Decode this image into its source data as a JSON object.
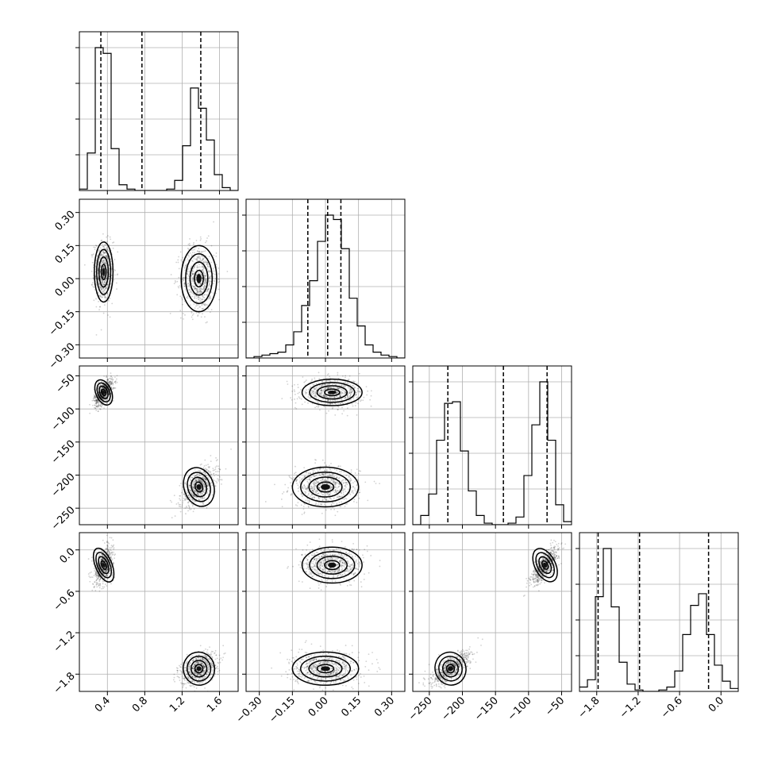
{
  "chart_data": {
    "type": "corner",
    "grid": true,
    "parameters": [
      {
        "index": 0,
        "range": [
          0.1,
          1.8
        ],
        "ticks": [
          {
            "v": 0.4,
            "label": "0.4"
          },
          {
            "v": 0.8,
            "label": "0.8"
          },
          {
            "v": 1.2,
            "label": "1.2"
          },
          {
            "v": 1.6,
            "label": "1.6"
          }
        ],
        "quantiles": [
          0.33,
          0.77,
          1.4
        ]
      },
      {
        "index": 1,
        "range": [
          -0.36,
          0.36
        ],
        "ticks": [
          {
            "v": -0.3,
            "label": "−0.30"
          },
          {
            "v": -0.15,
            "label": "−0.15"
          },
          {
            "v": 0.0,
            "label": "0.00"
          },
          {
            "v": 0.15,
            "label": "0.15"
          },
          {
            "v": 0.3,
            "label": "0.30"
          }
        ],
        "quantiles": [
          -0.08,
          0.01,
          0.07
        ]
      },
      {
        "index": 2,
        "range": [
          -275,
          -35
        ],
        "ticks": [
          {
            "v": -250,
            "label": "−250"
          },
          {
            "v": -200,
            "label": "−200"
          },
          {
            "v": -150,
            "label": "−150"
          },
          {
            "v": -100,
            "label": "−100"
          },
          {
            "v": -50,
            "label": "−50"
          }
        ],
        "quantiles": [
          -222,
          -138,
          -72
        ]
      },
      {
        "index": 3,
        "range": [
          -2.05,
          0.25
        ],
        "ticks": [
          {
            "v": -1.8,
            "label": "−1.8"
          },
          {
            "v": -1.2,
            "label": "−1.2"
          },
          {
            "v": -0.6,
            "label": "−0.6"
          },
          {
            "v": 0.0,
            "label": "0.0"
          }
        ],
        "quantiles": [
          -1.78,
          -1.18,
          -0.18
        ]
      }
    ],
    "histograms": [
      {
        "param": 0,
        "edges": [
          0.1,
          0.185,
          0.27,
          0.355,
          0.44,
          0.525,
          0.61,
          0.695,
          0.78,
          0.865,
          0.95,
          1.035,
          1.12,
          1.205,
          1.29,
          1.375,
          1.46,
          1.545,
          1.63,
          1.715,
          1.8
        ],
        "counts": [
          0.01,
          0.26,
          0.99,
          0.95,
          0.29,
          0.04,
          0.01,
          0,
          0,
          0,
          0,
          0.01,
          0.07,
          0.31,
          0.71,
          0.57,
          0.35,
          0.11,
          0.02,
          0
        ]
      },
      {
        "param": 1,
        "edges": [
          -0.36,
          -0.324,
          -0.288,
          -0.252,
          -0.216,
          -0.18,
          -0.144,
          -0.108,
          -0.072,
          -0.036,
          0.0,
          0.036,
          0.072,
          0.108,
          0.144,
          0.18,
          0.216,
          0.252,
          0.288,
          0.324,
          0.36
        ],
        "counts": [
          0,
          0.01,
          0.02,
          0.03,
          0.04,
          0.09,
          0.18,
          0.36,
          0.53,
          0.8,
          0.98,
          0.95,
          0.75,
          0.41,
          0.22,
          0.09,
          0.04,
          0.02,
          0.01,
          0
        ]
      },
      {
        "param": 2,
        "edges": [
          -275,
          -263,
          -251,
          -239,
          -227,
          -215,
          -203,
          -191,
          -179,
          -167,
          -155,
          -143,
          -131,
          -119,
          -107,
          -95,
          -83,
          -71,
          -59,
          -47,
          -35
        ],
        "counts": [
          0,
          0.06,
          0.2,
          0.55,
          0.79,
          0.8,
          0.48,
          0.22,
          0.06,
          0.01,
          0,
          0,
          0.01,
          0.05,
          0.32,
          0.65,
          0.93,
          0.55,
          0.13,
          0.02
        ]
      },
      {
        "param": 3,
        "edges": [
          -2.05,
          -1.935,
          -1.82,
          -1.705,
          -1.59,
          -1.475,
          -1.36,
          -1.245,
          -1.13,
          -1.015,
          -0.9,
          -0.785,
          -0.67,
          -0.555,
          -0.44,
          -0.325,
          -0.21,
          -0.095,
          0.02,
          0.135,
          0.25
        ],
        "counts": [
          0.03,
          0.08,
          0.65,
          0.98,
          0.58,
          0.2,
          0.05,
          0.01,
          0,
          0,
          0.01,
          0.03,
          0.14,
          0.39,
          0.59,
          0.67,
          0.39,
          0.18,
          0.07,
          0.02
        ]
      }
    ],
    "modes": [
      {
        "means": [
          0.36,
          0.03,
          -75,
          -0.22
        ],
        "sd": [
          0.05,
          0.068,
          10,
          0.13
        ],
        "weight": 0.5
      },
      {
        "means": [
          1.38,
          0.0,
          -218,
          -1.72
        ],
        "sd": [
          0.095,
          0.075,
          15,
          0.12
        ],
        "weight": 0.5
      }
    ],
    "correlations": [
      {
        "i": 2,
        "j": 0,
        "r": 0.55
      },
      {
        "i": 3,
        "j": 0,
        "r": 0.4
      },
      {
        "i": 3,
        "j": 2,
        "r": 0.75
      }
    ],
    "contour_levels_sigma": [
      0.5,
      1.0,
      1.5,
      2.0
    ]
  },
  "colors": {
    "line": "#000000",
    "grid": "#b0b0b0",
    "points": "#000000",
    "background": "#ffffff"
  }
}
